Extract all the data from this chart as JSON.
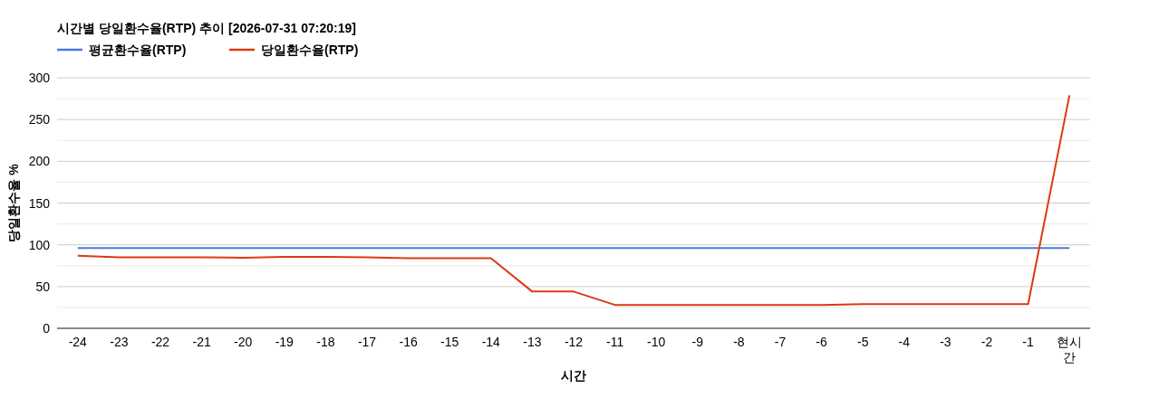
{
  "chart_data": {
    "type": "line",
    "title": "시간별 당일환수율(RTP) 추이 [2026-07-31 07:20:19]",
    "xlabel": "시간",
    "ylabel": "당일환수율 %",
    "categories": [
      "-24",
      "-23",
      "-22",
      "-21",
      "-20",
      "-19",
      "-18",
      "-17",
      "-16",
      "-15",
      "-14",
      "-13",
      "-12",
      "-11",
      "-10",
      "-9",
      "-8",
      "-7",
      "-6",
      "-5",
      "-4",
      "-3",
      "-2",
      "-1",
      "현시간"
    ],
    "series": [
      {
        "name": "평균환수율(RTP)",
        "color": "#4a7bd8",
        "values": [
          96,
          96,
          96,
          96,
          96,
          96,
          96,
          96,
          96,
          96,
          96,
          96,
          96,
          96,
          96,
          96,
          96,
          96,
          96,
          96,
          96,
          96,
          96,
          96,
          96
        ]
      },
      {
        "name": "당일환수율(RTP)",
        "color": "#dc3912",
        "values": [
          87,
          85,
          85,
          85,
          84.5,
          85.5,
          85.5,
          85,
          84,
          84,
          84,
          44,
          44,
          28,
          28,
          28,
          28,
          28,
          28,
          29,
          29,
          29,
          29,
          29,
          279
        ]
      }
    ],
    "ylim": [
      0,
      300
    ],
    "yticks": [
      0,
      {
        "value": 25,
        "label": null
      },
      50,
      {
        "value": 75,
        "label": null
      },
      100,
      {
        "value": 125,
        "label": null
      },
      150,
      {
        "value": 175,
        "label": null
      },
      200,
      {
        "value": 225,
        "label": null
      },
      250,
      {
        "value": 275,
        "label": null
      },
      300
    ],
    "grid": true,
    "legend": "top left",
    "marker": "none",
    "line_style": "solid"
  }
}
